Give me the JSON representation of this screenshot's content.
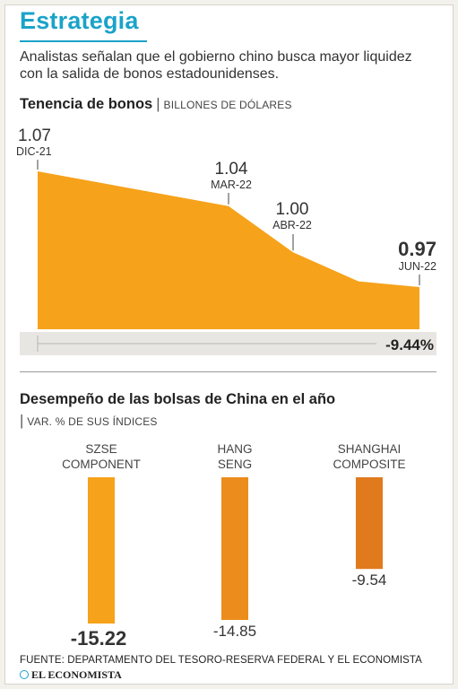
{
  "header": {
    "title": "Estrategia",
    "subtitle": "Analistas señalan que el gobierno chino busca mayor liquidez con la salida de bonos estadounidenses."
  },
  "section1": {
    "title": "Tenencia de bonos",
    "unit": "BILLONES DE DÓLARES"
  },
  "section2": {
    "title": "Desempeño de las bolsas de China en el año",
    "unit": "VAR. % DE SUS ÍNDICES"
  },
  "footer": {
    "source": "FUENTE: DEPARTAMENTO DEL TESORO-RESERVA FEDERAL  Y EL ECONOMISTA",
    "logo": "EL ECONOMISTA"
  },
  "colors": {
    "accent": "#1aa3c9",
    "area": "#f6a21b",
    "bar_light": "#f6a21b",
    "bar_mid": "#ec8c1c",
    "bar_dark": "#e17a1d",
    "track": "#e8e6e2"
  },
  "chart_data": [
    {
      "type": "area",
      "title": "Tenencia de bonos",
      "ylabel": "BILLONES DE DÓLARES",
      "x": [
        "DIC-21",
        "MAR-22",
        "ABR-22",
        "JUN-22"
      ],
      "values": [
        1.07,
        1.04,
        1.0,
        0.97
      ],
      "labels": [
        "1.07",
        "1.04",
        "1.00",
        "0.97"
      ],
      "change_label": "-9.44%"
    },
    {
      "type": "bar",
      "title": "Desempeño de las bolsas de China en el año",
      "ylabel": "VAR. % DE SUS ÍNDICES",
      "categories": [
        [
          "SZSE",
          "COMPONENT"
        ],
        [
          "HANG",
          "SENG"
        ],
        [
          "SHANGHAI",
          "COMPOSITE"
        ]
      ],
      "values": [
        -15.22,
        -14.85,
        -9.54
      ],
      "labels": [
        "-15.22",
        "-14.85",
        "-9.54"
      ]
    }
  ]
}
